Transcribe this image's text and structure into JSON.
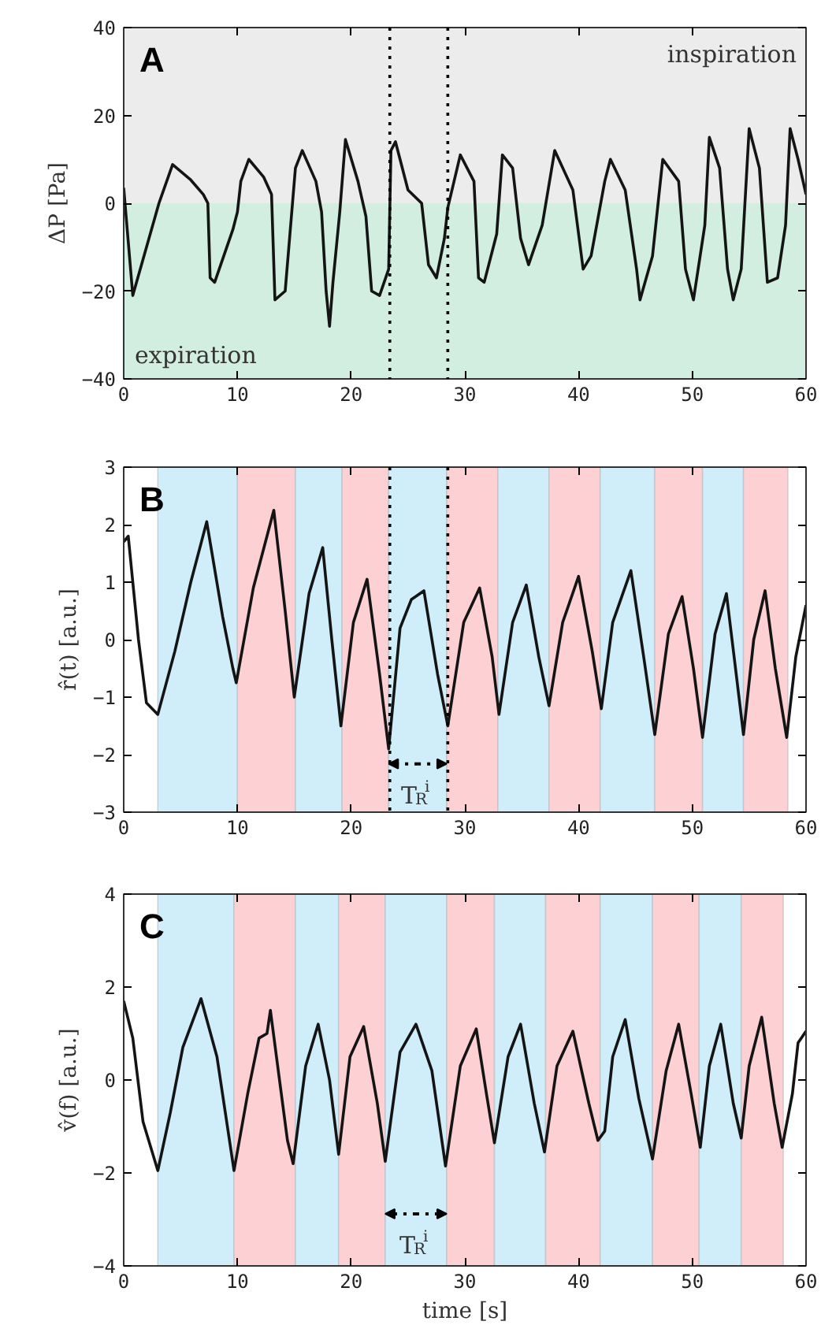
{
  "chart_data": [
    {
      "type": "line",
      "title": "A",
      "ylabel": "ΔP [Pa]",
      "xlim": [
        0,
        60
      ],
      "xticks": [
        0,
        10,
        20,
        30,
        40,
        50,
        60
      ],
      "ylim": [
        -40,
        40
      ],
      "yticks": [
        -40,
        -20,
        0,
        20,
        40
      ],
      "x": [
        0,
        0.8,
        3.1,
        4.3,
        5.9,
        7.0,
        7.4,
        7.6,
        8.0,
        9.6,
        10.0,
        10.3,
        11.0,
        12.3,
        13.0,
        13.3,
        14.2,
        15.1,
        15.7,
        16.9,
        17.4,
        17.8,
        18.1,
        18.4,
        19.0,
        19.5,
        20.6,
        21.3,
        21.8,
        22.5,
        23.3,
        23.5,
        23.9,
        25.0,
        26.2,
        26.8,
        27.5,
        28.2,
        28.5,
        29.6,
        30.8,
        31.2,
        31.7,
        32.8,
        33.3,
        34.2,
        34.9,
        35.6,
        36.8,
        37.9,
        39.5,
        40.4,
        41.1,
        42.3,
        42.8,
        44.1,
        45.1,
        45.4,
        46.5,
        47.4,
        48.8,
        49.4,
        50.1,
        51.1,
        51.5,
        52.4,
        53.1,
        53.6,
        54.3,
        55.0,
        55.9,
        56.6,
        57.5,
        58.2,
        58.6,
        59.3,
        60
      ],
      "series": [
        {
          "color": "#141414",
          "values": [
            3.5,
            -21,
            0,
            8.8,
            5.3,
            2,
            0,
            -17,
            -18,
            -6,
            -2,
            5,
            10,
            6,
            2,
            -22,
            -20,
            8,
            12,
            5,
            -2,
            -20,
            -28,
            -18,
            -2,
            14.5,
            5,
            -3,
            -20,
            -21,
            -15,
            12,
            14,
            3,
            0,
            -14,
            -17,
            -8,
            -1,
            11,
            5,
            -17,
            -18,
            -7,
            11,
            8,
            -8,
            -14,
            -5,
            12,
            3,
            -15,
            -12,
            5,
            10,
            3,
            -15,
            -22,
            -12,
            10,
            5,
            -15,
            -22,
            -5,
            15,
            8,
            -15,
            -22,
            -15,
            17,
            8,
            -18,
            -17,
            -5,
            17,
            10,
            2
          ]
        }
      ],
      "bands": [
        {
          "axis": "y",
          "from": 0,
          "to": 40,
          "label": "inspiration",
          "color": "#ececec"
        },
        {
          "axis": "y",
          "from": -40,
          "to": 0,
          "label": "expiration",
          "color": "#d2eee0"
        }
      ],
      "ref_lines": [
        {
          "axis": "x",
          "value": 23.4,
          "line_style": "dotted",
          "color": "#000000"
        },
        {
          "axis": "x",
          "value": 28.5,
          "line_style": "dotted",
          "color": "#000000"
        }
      ]
    },
    {
      "type": "line",
      "title": "B",
      "ylabel": "r̂(t) [a.u.]",
      "xlim": [
        0,
        60
      ],
      "xticks": [
        0,
        10,
        20,
        30,
        40,
        50,
        60
      ],
      "ylim": [
        -3,
        3
      ],
      "yticks": [
        -3,
        -2,
        -1,
        0,
        1,
        2,
        3
      ],
      "x": [
        0,
        0.4,
        1.3,
        2.0,
        3.0,
        4.5,
        5.9,
        7.3,
        8.7,
        9.6,
        9.9,
        11.4,
        13.2,
        14.2,
        15.0,
        16.3,
        17.5,
        18.3,
        19.1,
        20.2,
        21.4,
        22.5,
        23.3,
        24.3,
        25.3,
        26.4,
        27.6,
        28.5,
        29.9,
        31.3,
        32.4,
        33.0,
        34.2,
        35.4,
        36.5,
        37.4,
        38.6,
        40.0,
        41.2,
        42.0,
        43.0,
        44.6,
        45.8,
        46.7,
        47.9,
        49.1,
        50.1,
        50.9,
        52.0,
        53.0,
        53.8,
        54.5,
        55.4,
        56.4,
        57.3,
        58.3,
        59.1,
        60
      ],
      "series": [
        {
          "color": "#141414",
          "values": [
            1.7,
            1.8,
            0,
            -1.1,
            -1.3,
            -0.2,
            1.0,
            2.05,
            0.4,
            -0.5,
            -0.75,
            0.9,
            2.25,
            0.5,
            -1.0,
            0.8,
            1.6,
            0.0,
            -1.5,
            0.3,
            1.05,
            -0.6,
            -1.9,
            0.2,
            0.7,
            0.85,
            -0.6,
            -1.5,
            0.3,
            0.9,
            -0.3,
            -1.3,
            0.3,
            0.95,
            -0.3,
            -1.15,
            0.3,
            1.1,
            -0.2,
            -1.2,
            0.3,
            1.2,
            -0.4,
            -1.65,
            0.1,
            0.75,
            -0.5,
            -1.7,
            0.1,
            0.8,
            -0.5,
            -1.65,
            0.0,
            0.85,
            -0.5,
            -1.7,
            -0.3,
            0.6
          ]
        }
      ],
      "bands": [
        {
          "axis": "x",
          "from": 3.0,
          "to": 10.0,
          "color": "#cfeef9"
        },
        {
          "axis": "x",
          "from": 10.0,
          "to": 15.1,
          "color": "#fdd1d3"
        },
        {
          "axis": "x",
          "from": 15.1,
          "to": 19.2,
          "color": "#cfeef9"
        },
        {
          "axis": "x",
          "from": 19.2,
          "to": 23.3,
          "color": "#fdd1d3"
        },
        {
          "axis": "x",
          "from": 23.3,
          "to": 28.4,
          "color": "#cfeef9",
          "label": "T$_{R}$$^{i}$"
        },
        {
          "axis": "x",
          "from": 28.4,
          "to": 32.9,
          "color": "#fdd1d3"
        },
        {
          "axis": "x",
          "from": 32.9,
          "to": 37.4,
          "color": "#cfeef9"
        },
        {
          "axis": "x",
          "from": 37.4,
          "to": 41.9,
          "color": "#fdd1d3"
        },
        {
          "axis": "x",
          "from": 41.9,
          "to": 46.7,
          "color": "#cfeef9"
        },
        {
          "axis": "x",
          "from": 46.7,
          "to": 50.9,
          "color": "#fdd1d3"
        },
        {
          "axis": "x",
          "from": 50.9,
          "to": 54.5,
          "color": "#cfeef9"
        },
        {
          "axis": "x",
          "from": 54.5,
          "to": 58.4,
          "color": "#fdd1d3"
        }
      ],
      "ref_lines": [
        {
          "axis": "x",
          "value": 23.4,
          "line_style": "dotted",
          "color": "#000000"
        },
        {
          "axis": "x",
          "value": 28.5,
          "line_style": "dotted",
          "color": "#000000"
        }
      ]
    },
    {
      "type": "line",
      "title": "C",
      "xlabel": "time [s]",
      "ylabel": "v̂(f) [a.u.]",
      "xlim": [
        0,
        60
      ],
      "xticks": [
        0,
        10,
        20,
        30,
        40,
        50,
        60
      ],
      "ylim": [
        -4,
        4
      ],
      "yticks": [
        -4,
        -2,
        0,
        2,
        4
      ],
      "x": [
        0,
        0.8,
        1.7,
        3.0,
        4.1,
        5.2,
        6.8,
        8.2,
        9.7,
        10.9,
        11.9,
        12.6,
        12.9,
        13.7,
        14.4,
        14.9,
        16.0,
        17.1,
        18.1,
        18.9,
        19.9,
        21.1,
        22.3,
        23.0,
        24.3,
        25.7,
        27.1,
        28.3,
        29.6,
        31.0,
        31.9,
        32.6,
        33.8,
        34.9,
        36.1,
        37.0,
        38.1,
        39.5,
        40.9,
        41.7,
        42.3,
        43.0,
        44.1,
        45.3,
        46.5,
        47.7,
        48.8,
        49.9,
        50.7,
        51.5,
        52.5,
        53.6,
        54.3,
        55.0,
        56.1,
        57.2,
        57.9,
        58.8,
        59.3,
        60
      ],
      "series": [
        {
          "color": "#141414",
          "values": [
            1.7,
            0.9,
            -0.9,
            -1.95,
            -0.7,
            0.7,
            1.75,
            0.5,
            -1.95,
            -0.3,
            0.9,
            1.0,
            1.5,
            0.0,
            -1.3,
            -1.8,
            0.3,
            1.2,
            0.0,
            -1.6,
            0.5,
            1.15,
            -0.5,
            -1.75,
            0.6,
            1.2,
            0.2,
            -1.85,
            0.3,
            1.1,
            -0.3,
            -1.35,
            0.5,
            1.2,
            -0.5,
            -1.55,
            0.3,
            1.05,
            -0.5,
            -1.3,
            -1.1,
            0.5,
            1.3,
            -0.4,
            -1.7,
            0.2,
            1.2,
            -0.3,
            -1.45,
            0.3,
            1.2,
            -0.5,
            -1.25,
            0.3,
            1.35,
            -0.5,
            -1.45,
            -0.3,
            0.8,
            1.05
          ]
        }
      ],
      "bands": [
        {
          "axis": "x",
          "from": 3.0,
          "to": 9.7,
          "color": "#cfeef9"
        },
        {
          "axis": "x",
          "from": 9.7,
          "to": 15.1,
          "color": "#fdd1d3"
        },
        {
          "axis": "x",
          "from": 15.1,
          "to": 18.9,
          "color": "#cfeef9"
        },
        {
          "axis": "x",
          "from": 18.9,
          "to": 23.0,
          "color": "#fdd1d3"
        },
        {
          "axis": "x",
          "from": 23.0,
          "to": 28.4,
          "color": "#cfeef9",
          "label": "T$_{R}$$^{i}$"
        },
        {
          "axis": "x",
          "from": 28.4,
          "to": 32.6,
          "color": "#fdd1d3"
        },
        {
          "axis": "x",
          "from": 32.6,
          "to": 37.1,
          "color": "#cfeef9"
        },
        {
          "axis": "x",
          "from": 37.1,
          "to": 41.9,
          "color": "#fdd1d3"
        },
        {
          "axis": "x",
          "from": 41.9,
          "to": 46.5,
          "color": "#cfeef9"
        },
        {
          "axis": "x",
          "from": 46.5,
          "to": 50.6,
          "color": "#fdd1d3"
        },
        {
          "axis": "x",
          "from": 50.6,
          "to": 54.3,
          "color": "#cfeef9"
        },
        {
          "axis": "x",
          "from": 54.3,
          "to": 58.0,
          "color": "#fdd1d3"
        }
      ]
    }
  ]
}
